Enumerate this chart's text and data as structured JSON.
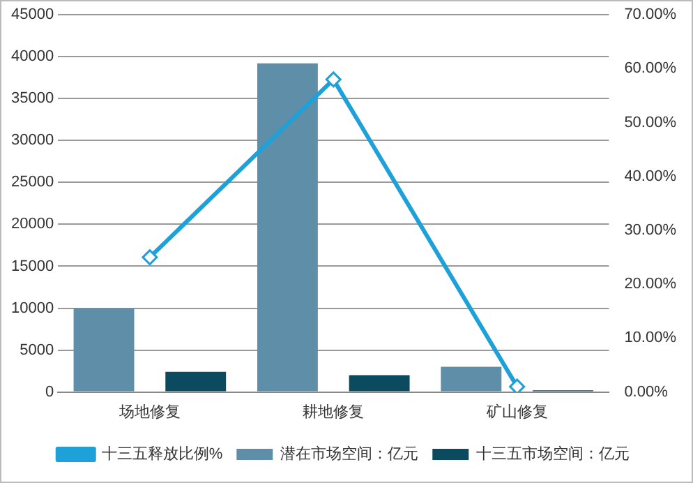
{
  "chart_data": {
    "type": "bar",
    "categories": [
      "场地修复",
      "耕地修复",
      "矿山修复"
    ],
    "series": [
      {
        "name": "潜在市场空间：亿元",
        "color": "#5f8fa8",
        "values": [
          10000,
          39200,
          3000
        ]
      },
      {
        "name": "十三五市场空间：亿元",
        "color": "#0c4a60",
        "values": [
          2400,
          2000,
          200
        ]
      },
      {
        "name": "十三五释放比例%",
        "type": "line",
        "axis": "y2",
        "color": "#1ea0d8",
        "values": [
          25,
          58,
          1
        ],
        "marker": "diamond"
      }
    ],
    "ylim": [
      0,
      45000
    ],
    "yticks": [
      0,
      5000,
      10000,
      15000,
      20000,
      25000,
      30000,
      35000,
      40000,
      45000
    ],
    "y2lim": [
      0,
      70
    ],
    "y2ticks": [
      {
        "value": 0,
        "label": "0.00%"
      },
      {
        "value": 10,
        "label": "10.00%"
      },
      {
        "value": 20,
        "label": "20.00%"
      },
      {
        "value": 30,
        "label": "30.00%"
      },
      {
        "value": 40,
        "label": "40.00%"
      },
      {
        "value": 50,
        "label": "50.00%"
      },
      {
        "value": 60,
        "label": "60.00%"
      },
      {
        "value": 70,
        "label": "70.00%"
      }
    ],
    "grid": "y",
    "legend": "bottom"
  }
}
